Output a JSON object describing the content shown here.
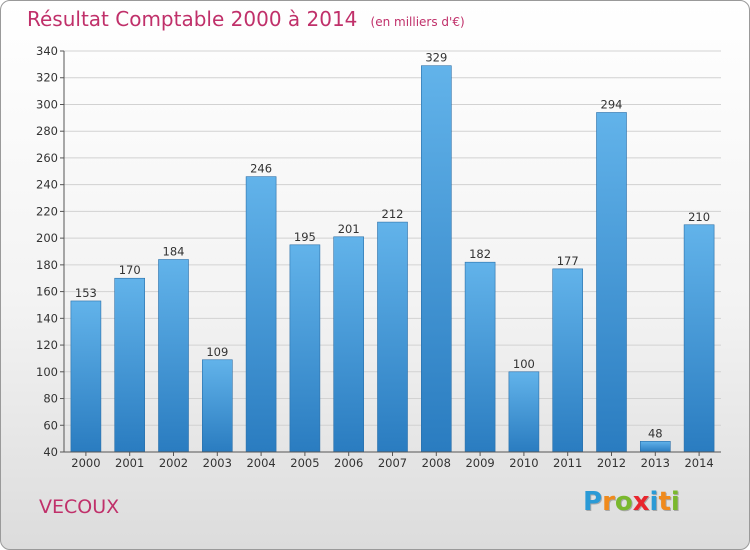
{
  "title": "Résultat Comptable 2000 à 2014",
  "unit": "(en milliers d'€)",
  "town": "VECOUX",
  "logo": {
    "letters": [
      "P",
      "r",
      "o",
      "x",
      "i",
      "t",
      "i"
    ],
    "colors": [
      "#2a9ad6",
      "#f08a1c",
      "#7ab82e",
      "#e8262e",
      "#2a9ad6",
      "#f08a1c",
      "#7ab82e"
    ]
  },
  "colors": {
    "bar_top": "#62b3ea",
    "bar_bottom": "#2a7cc0",
    "title": "#c0306a"
  },
  "chart_data": {
    "type": "bar",
    "title": "Résultat Comptable 2000 à 2014",
    "xlabel": "",
    "ylabel": "(en milliers d'€)",
    "ylim": [
      40,
      340
    ],
    "yticks": [
      40,
      60,
      80,
      100,
      120,
      140,
      160,
      180,
      200,
      220,
      240,
      260,
      280,
      300,
      320,
      340
    ],
    "grid": true,
    "categories": [
      "2000",
      "2001",
      "2002",
      "2003",
      "2004",
      "2005",
      "2006",
      "2007",
      "2008",
      "2009",
      "2010",
      "2011",
      "2012",
      "2013",
      "2014"
    ],
    "values": [
      153,
      170,
      184,
      109,
      246,
      195,
      201,
      212,
      329,
      182,
      100,
      177,
      294,
      48,
      210
    ]
  }
}
